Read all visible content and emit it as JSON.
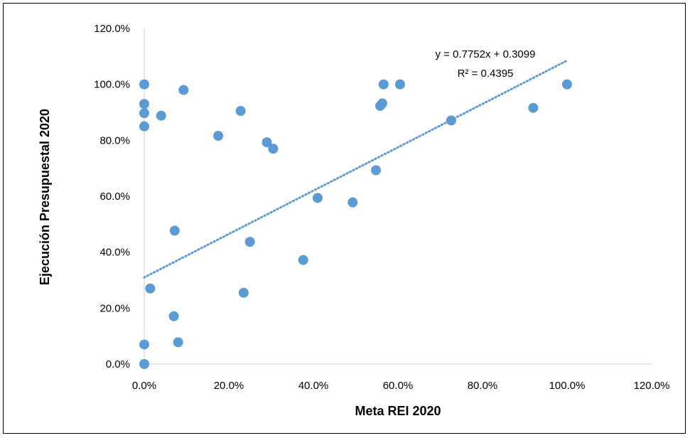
{
  "chart_data": {
    "type": "scatter",
    "title": "",
    "xlabel": "Meta REI 2020",
    "ylabel": "Ejecución Presupuestal 2020",
    "xlim": [
      0,
      1.2
    ],
    "ylim": [
      0,
      1.2
    ],
    "x_ticks": [
      "0.0%",
      "20.0%",
      "40.0%",
      "60.0%",
      "80.0%",
      "100.0%",
      "120.0%"
    ],
    "y_ticks": [
      "0.0%",
      "20.0%",
      "40.0%",
      "60.0%",
      "80.0%",
      "100.0%",
      "120.0%"
    ],
    "grid": false,
    "marker_color": "#5b9bd5",
    "trendline": {
      "type": "linear",
      "slope": 0.7752,
      "intercept": 0.3099,
      "x_range": [
        0,
        1.0
      ],
      "style": "dotted",
      "color": "#5b9bd5",
      "equation_label": "y = 0.7752x + 0.3099",
      "r2_label": "R² = 0.4395"
    },
    "points": [
      {
        "x": 0.0,
        "y": 1.0
      },
      {
        "x": 0.0,
        "y": 0.93
      },
      {
        "x": 0.0,
        "y": 0.897
      },
      {
        "x": 0.0,
        "y": 0.85
      },
      {
        "x": 0.0,
        "y": 0.07
      },
      {
        "x": 0.0,
        "y": 0.0
      },
      {
        "x": 0.04,
        "y": 0.888
      },
      {
        "x": 0.014,
        "y": 0.27
      },
      {
        "x": 0.093,
        "y": 0.98
      },
      {
        "x": 0.072,
        "y": 0.477
      },
      {
        "x": 0.07,
        "y": 0.171
      },
      {
        "x": 0.08,
        "y": 0.078
      },
      {
        "x": 0.175,
        "y": 0.816
      },
      {
        "x": 0.228,
        "y": 0.905
      },
      {
        "x": 0.235,
        "y": 0.255
      },
      {
        "x": 0.25,
        "y": 0.437
      },
      {
        "x": 0.29,
        "y": 0.793
      },
      {
        "x": 0.305,
        "y": 0.77
      },
      {
        "x": 0.376,
        "y": 0.372
      },
      {
        "x": 0.41,
        "y": 0.594
      },
      {
        "x": 0.493,
        "y": 0.578
      },
      {
        "x": 0.548,
        "y": 0.693
      },
      {
        "x": 0.558,
        "y": 0.923
      },
      {
        "x": 0.563,
        "y": 0.932
      },
      {
        "x": 0.566,
        "y": 1.0
      },
      {
        "x": 0.605,
        "y": 1.0
      },
      {
        "x": 0.726,
        "y": 0.871
      },
      {
        "x": 0.92,
        "y": 0.916
      },
      {
        "x": 1.0,
        "y": 1.0
      }
    ]
  }
}
